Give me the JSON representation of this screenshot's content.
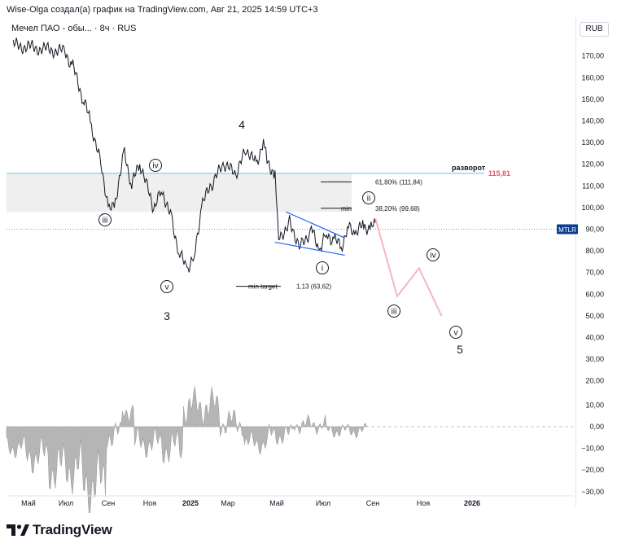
{
  "header": {
    "attribution": "Wise-Olga создал(а) график на TradingView.com, Авг 21, 2025 14:59 UTC+3",
    "symbol": "Мечел ПАО - обы... · 8ч · RUS",
    "currency": "RUB"
  },
  "brand": {
    "name": "TradingView"
  },
  "chart_data": {
    "type": "line",
    "series": [
      {
        "role": "price",
        "x": [
          "2024-04-10",
          "2024-06-20",
          "2024-07-01",
          "2024-07-15",
          "2024-07-25",
          "2024-08-10",
          "2024-08-20",
          "2024-08-27",
          "2024-09-10",
          "2024-09-20",
          "2024-10-01",
          "2024-10-20",
          "2024-11-01",
          "2024-11-15",
          "2024-11-25",
          "2024-12-05",
          "2024-12-15",
          "2024-12-25",
          "2025-01-10",
          "2025-01-25",
          "2025-02-10",
          "2025-02-25",
          "2025-03-10",
          "2025-03-20",
          "2025-03-25",
          "2025-04-05",
          "2025-04-10",
          "2025-04-25",
          "2025-05-10",
          "2025-05-25",
          "2025-06-05",
          "2025-06-15",
          "2025-06-25",
          "2025-07-05",
          "2025-07-15",
          "2025-07-25",
          "2025-08-05",
          "2025-08-15",
          "2025-08-21"
        ],
        "y": [
          175,
          172,
          165,
          150,
          140,
          118,
          98,
          101,
          126,
          110,
          121,
          99,
          108,
          93,
          78,
          72,
          77,
          101,
          112,
          120,
          115,
          127,
          120,
          131,
          122,
          115,
          86,
          93,
          82,
          90,
          80,
          88,
          85,
          82,
          91,
          88,
          92,
          90,
          93
        ]
      },
      {
        "role": "projection",
        "color": "#f4b6c2",
        "x": [
          "2025-08-21",
          "2025-09-20",
          "2025-10-20",
          "2025-11-20"
        ],
        "y": [
          95,
          59,
          72,
          50
        ]
      }
    ],
    "price_axis": [
      170,
      160,
      150,
      140,
      130,
      120,
      110,
      100,
      90,
      80,
      70,
      60,
      50,
      40,
      30,
      20
    ],
    "indicator_axis": [
      "10,00",
      "0,00",
      "−10,00",
      "−20,00",
      "−30,00"
    ],
    "x_ticks": [
      "Май",
      "Июл",
      "Сен",
      "Ноя",
      "2025",
      "Мар",
      "Май",
      "Июл",
      "Сен",
      "Ноя",
      "2026"
    ],
    "last_price_label": "MTLR",
    "resistance": {
      "value": 115.81,
      "label": "разворот",
      "value_label": "115,81"
    },
    "fib_levels": [
      {
        "value": 111.84,
        "label": "61,80% (111,84)"
      },
      {
        "value": 99.68,
        "label": "38,20% (99,68)",
        "prefix": "min"
      },
      {
        "value": 63.62,
        "label": "1,13 (63,62)",
        "prefix": "min target"
      }
    ],
    "zone": [
      98,
      116
    ],
    "wedge": {
      "upper": [
        [
          "2025-04-20",
          98
        ],
        [
          "2025-07-10",
          86
        ]
      ],
      "lower": [
        [
          "2025-04-05",
          84
        ],
        [
          "2025-07-10",
          78
        ]
      ]
    },
    "wave_labels": [
      {
        "text": "iii",
        "circled": true
      },
      {
        "text": "iv",
        "circled": true
      },
      {
        "text": "v",
        "circled": true
      },
      {
        "text": "3",
        "circled": false
      },
      {
        "text": "4",
        "circled": false
      },
      {
        "text": "i",
        "circled": true
      },
      {
        "text": "ii",
        "circled": true
      },
      {
        "text": "iii",
        "circled": true
      },
      {
        "text": "iv",
        "circled": true
      },
      {
        "text": "v",
        "circled": true
      },
      {
        "text": "5",
        "circled": false
      }
    ],
    "indicator": {
      "type": "area",
      "color": "#b5b5b5"
    }
  }
}
